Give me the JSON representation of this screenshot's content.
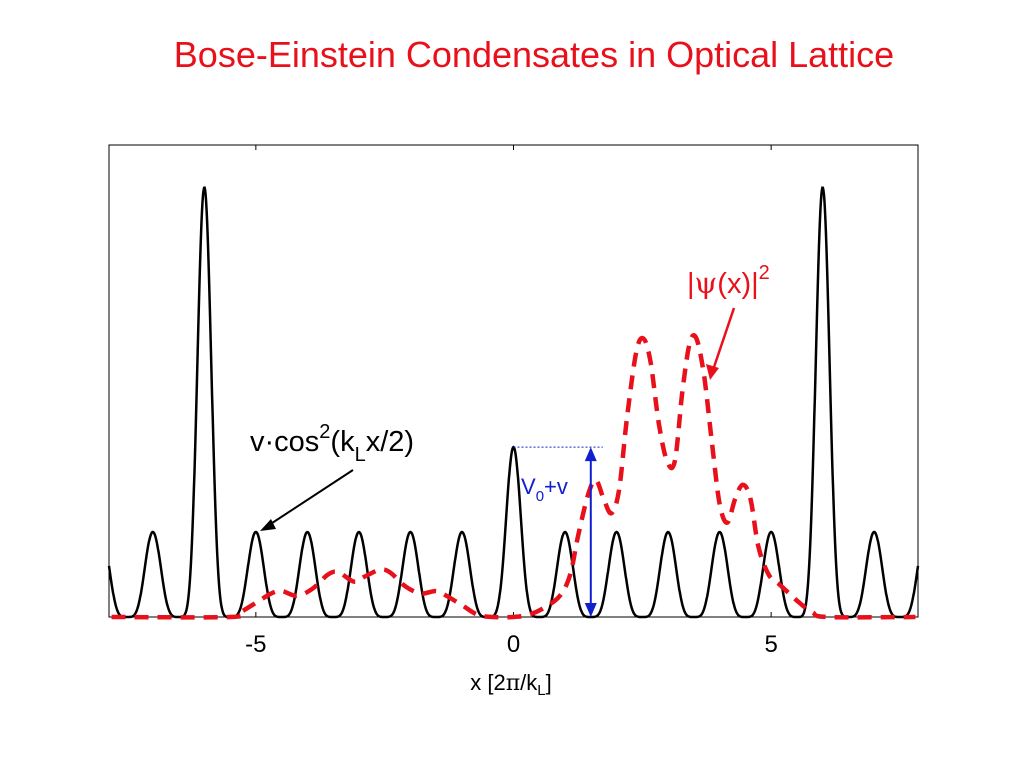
{
  "slide": {
    "title": "Bose-Einstein Condensates in Optical Lattice"
  },
  "chart_data": {
    "type": "line",
    "title": "",
    "xlabel": "x  [2π/k_L]",
    "xlabel_parts": {
      "pre": "x  [2",
      "pi": "π",
      "mid": "/k",
      "sub": "L",
      "post": "]"
    },
    "ylabel": "",
    "xlim": [
      -7.85,
      7.85
    ],
    "ylim": [
      0,
      1
    ],
    "x_ticks": [
      -5,
      0,
      5
    ],
    "x_tick_labels": [
      "-5",
      "0",
      "5"
    ],
    "grid": false,
    "colors": {
      "potential": "#000000",
      "density": "#e8101a",
      "annotation_blue": "#1020d0",
      "annotation_red": "#e8101a",
      "annotation_black": "#000000"
    },
    "series": [
      {
        "id": "potential",
        "style": "solid",
        "description_formula": "v·cos²(k_L x/2) lattice with raised sites",
        "period": 1,
        "base_amplitude": 0.18,
        "tall_sites": [
          {
            "x": -6,
            "height": 0.91
          },
          {
            "x": 0,
            "height": 0.36
          },
          {
            "x": 6,
            "height": 0.91
          }
        ]
      },
      {
        "id": "density",
        "style": "dashed",
        "description_formula": "|ψ(x)|²",
        "points": [
          [
            -7.8,
            0.0
          ],
          [
            -5.5,
            0.0
          ],
          [
            -5.3,
            0.01
          ],
          [
            -5.0,
            0.03
          ],
          [
            -4.7,
            0.05
          ],
          [
            -4.5,
            0.055
          ],
          [
            -4.2,
            0.045
          ],
          [
            -3.9,
            0.06
          ],
          [
            -3.6,
            0.09
          ],
          [
            -3.4,
            0.095
          ],
          [
            -3.1,
            0.075
          ],
          [
            -2.9,
            0.085
          ],
          [
            -2.6,
            0.1
          ],
          [
            -2.4,
            0.095
          ],
          [
            -2.1,
            0.065
          ],
          [
            -1.8,
            0.05
          ],
          [
            -1.5,
            0.055
          ],
          [
            -1.3,
            0.045
          ],
          [
            -1.0,
            0.025
          ],
          [
            -0.7,
            0.005
          ],
          [
            -0.4,
            0.0
          ],
          [
            0.0,
            0.0
          ],
          [
            0.3,
            0.005
          ],
          [
            0.6,
            0.02
          ],
          [
            0.9,
            0.045
          ],
          [
            1.1,
            0.09
          ],
          [
            1.25,
            0.17
          ],
          [
            1.45,
            0.26
          ],
          [
            1.6,
            0.29
          ],
          [
            1.75,
            0.25
          ],
          [
            1.9,
            0.22
          ],
          [
            2.05,
            0.27
          ],
          [
            2.2,
            0.42
          ],
          [
            2.38,
            0.56
          ],
          [
            2.52,
            0.59
          ],
          [
            2.66,
            0.54
          ],
          [
            2.82,
            0.41
          ],
          [
            2.98,
            0.33
          ],
          [
            3.13,
            0.33
          ],
          [
            3.28,
            0.48
          ],
          [
            3.42,
            0.58
          ],
          [
            3.55,
            0.59
          ],
          [
            3.7,
            0.51
          ],
          [
            3.85,
            0.37
          ],
          [
            4.0,
            0.24
          ],
          [
            4.15,
            0.2
          ],
          [
            4.3,
            0.25
          ],
          [
            4.45,
            0.28
          ],
          [
            4.6,
            0.25
          ],
          [
            4.75,
            0.15
          ],
          [
            4.95,
            0.09
          ],
          [
            5.15,
            0.07
          ],
          [
            5.35,
            0.05
          ],
          [
            5.55,
            0.03
          ],
          [
            5.8,
            0.01
          ],
          [
            6.1,
            0.0
          ],
          [
            7.8,
            0.0
          ]
        ]
      }
    ],
    "annotations": {
      "potential_label": {
        "main": "v·cos",
        "sup": "2",
        "paren": "(k",
        "sub": "L",
        "tail": "x/2)"
      },
      "density_label": {
        "pre": "|",
        "psi": "ψ",
        "mid": "(x)|",
        "sup": "2"
      },
      "v_label": {
        "main": "V",
        "sub": "0",
        "tail": "+v"
      },
      "v_arrow_x": 1.5,
      "v_arrow_bottom": 0,
      "v_arrow_top": 0.36
    }
  }
}
